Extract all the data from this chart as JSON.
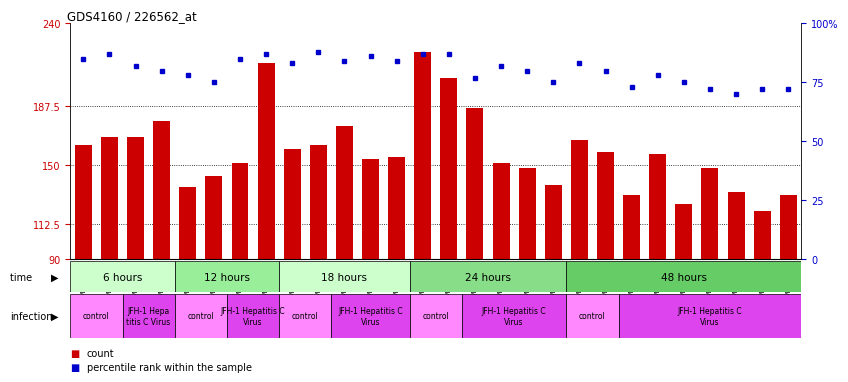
{
  "title": "GDS4160 / 226562_at",
  "samples": [
    "GSM523814",
    "GSM523815",
    "GSM523800",
    "GSM523801",
    "GSM523816",
    "GSM523817",
    "GSM523818",
    "GSM523802",
    "GSM523803",
    "GSM523804",
    "GSM523819",
    "GSM523820",
    "GSM523821",
    "GSM523805",
    "GSM523806",
    "GSM523807",
    "GSM523822",
    "GSM523823",
    "GSM523824",
    "GSM523808",
    "GSM523809",
    "GSM523810",
    "GSM523825",
    "GSM523826",
    "GSM523827",
    "GSM523811",
    "GSM523812",
    "GSM523813"
  ],
  "counts": [
    163,
    168,
    168,
    178,
    136,
    143,
    151,
    215,
    160,
    163,
    175,
    154,
    155,
    222,
    205,
    186,
    151,
    148,
    137,
    166,
    158,
    131,
    157,
    125,
    148,
    133,
    121,
    131
  ],
  "percentiles": [
    85,
    87,
    82,
    80,
    78,
    75,
    85,
    87,
    83,
    88,
    84,
    86,
    84,
    87,
    87,
    77,
    82,
    80,
    75,
    83,
    80,
    73,
    78,
    75,
    72,
    70,
    72,
    72
  ],
  "ylim_left": [
    90,
    240
  ],
  "ylim_right": [
    0,
    100
  ],
  "yticks_left": [
    90,
    112.5,
    150,
    187.5,
    240
  ],
  "ytick_labels_left": [
    "90",
    "112.5",
    "150",
    "187.5",
    "240"
  ],
  "yticks_right": [
    0,
    25,
    50,
    75,
    100
  ],
  "ytick_labels_right": [
    "0",
    "25",
    "50",
    "75",
    "100%"
  ],
  "bar_color": "#cc0000",
  "dot_color": "#0000cc",
  "time_colors": {
    "6 hours": "#ccffcc",
    "12 hours": "#99ee99",
    "18 hours": "#ccffcc",
    "24 hours": "#88dd88",
    "48 hours": "#66cc66"
  },
  "time_groups": [
    {
      "label": "6 hours",
      "start": 0,
      "end": 4
    },
    {
      "label": "12 hours",
      "start": 4,
      "end": 8
    },
    {
      "label": "18 hours",
      "start": 8,
      "end": 13
    },
    {
      "label": "24 hours",
      "start": 13,
      "end": 19
    },
    {
      "label": "48 hours",
      "start": 19,
      "end": 28
    }
  ],
  "infection_groups": [
    {
      "label": "control",
      "start": 0,
      "end": 2,
      "color": "#ff88ff"
    },
    {
      "label": "JFH-1 Hepa\ntitis C Virus",
      "start": 2,
      "end": 4,
      "color": "#dd44ee"
    },
    {
      "label": "control",
      "start": 4,
      "end": 6,
      "color": "#ff88ff"
    },
    {
      "label": "JFH-1 Hepatitis C\nVirus",
      "start": 6,
      "end": 8,
      "color": "#dd44ee"
    },
    {
      "label": "control",
      "start": 8,
      "end": 10,
      "color": "#ff88ff"
    },
    {
      "label": "JFH-1 Hepatitis C\nVirus",
      "start": 10,
      "end": 13,
      "color": "#dd44ee"
    },
    {
      "label": "control",
      "start": 13,
      "end": 15,
      "color": "#ff88ff"
    },
    {
      "label": "JFH-1 Hepatitis C\nVirus",
      "start": 15,
      "end": 19,
      "color": "#dd44ee"
    },
    {
      "label": "control",
      "start": 19,
      "end": 21,
      "color": "#ff88ff"
    },
    {
      "label": "JFH-1 Hepatitis C\nVirus",
      "start": 21,
      "end": 28,
      "color": "#dd44ee"
    }
  ],
  "legend_count_color": "#cc0000",
  "legend_pct_color": "#0000cc"
}
